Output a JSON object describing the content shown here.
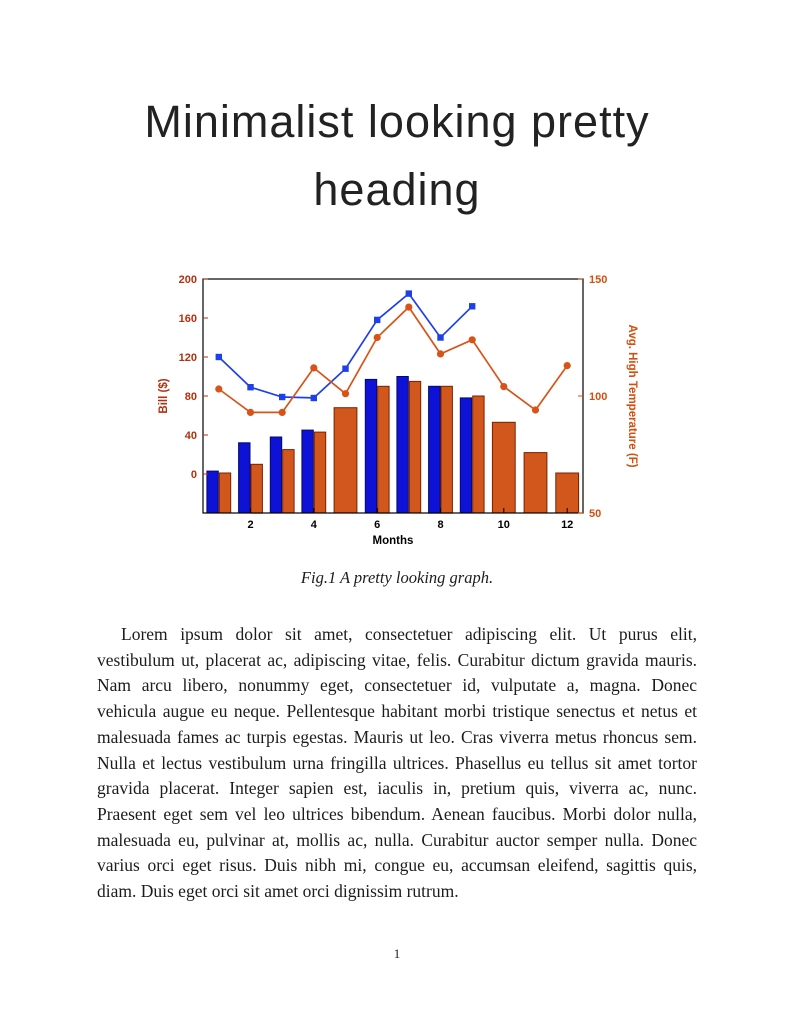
{
  "page": {
    "heading_line1": "Minimalist looking pretty",
    "heading_line2": "heading",
    "figure_caption": "Fig.1 A pretty looking graph.",
    "body_paragraph": "Lorem ipsum dolor sit amet, consectetuer adipiscing elit. Ut purus elit, vestibulum ut, placerat ac, adipiscing vitae, felis. Curabitur dictum gravida mauris. Nam arcu libero, nonummy eget, consectetuer id, vulputate a, magna. Donec vehicula augue eu neque. Pellentesque habitant morbi tristique senectus et netus et malesuada fames ac turpis egestas. Mauris ut leo. Cras viverra metus rhoncus sem. Nulla et lectus vestibulum urna fringilla ultrices. Phasellus eu tellus sit amet tortor gravida placerat. Integer sapien est, iaculis in, pretium quis, viverra ac, nunc. Praesent eget sem vel leo ultrices bibendum. Aenean faucibus. Morbi dolor nulla, malesuada eu, pulvinar at, mollis ac, nulla. Curabitur auctor semper nulla. Donec varius orci eget risus. Duis nibh mi, congue eu, accumsan eleifend, sagittis quis, diam. Duis eget orci sit amet orci dignissim rutrum.",
    "page_number": "1"
  },
  "chart_data": {
    "type": "bar",
    "subtype": "combo-bar-line-dual-axis",
    "x": [
      1,
      2,
      3,
      4,
      5,
      6,
      7,
      8,
      9,
      10,
      11,
      12
    ],
    "x_ticks": [
      2,
      4,
      6,
      8,
      10,
      12
    ],
    "x_min": 0.5,
    "x_max": 12.5,
    "xlabel": "Months",
    "grid": false,
    "legend": "none",
    "left_axis": {
      "label": "Bill ($)",
      "ticks": [
        0,
        40,
        80,
        120,
        160,
        200
      ],
      "min": -40,
      "max": 200,
      "color": "#b5300f"
    },
    "right_axis": {
      "label": "Avg. High Temperature (F)",
      "ticks": [
        50,
        100,
        150
      ],
      "min": 50,
      "max": 150,
      "color": "#d2500f"
    },
    "series": [
      {
        "name": "bill-bars-blue",
        "type": "bar",
        "axis": "left",
        "color": "#0d12d6",
        "edge": "#060a66",
        "values": [
          3,
          32,
          38,
          45,
          null,
          97,
          100,
          90,
          78,
          null,
          null,
          null
        ]
      },
      {
        "name": "temperature-bars-orange",
        "type": "bar",
        "axis": "left",
        "color": "#d2571c",
        "edge": "#7a2100",
        "values": [
          1,
          10,
          25,
          43,
          68,
          90,
          95,
          90,
          80,
          53,
          22,
          1
        ]
      },
      {
        "name": "bill-line-blue",
        "type": "line",
        "axis": "left",
        "color": "#1f3fe8",
        "marker": "square",
        "values": [
          120,
          89,
          79,
          78,
          108,
          158,
          185,
          140,
          172,
          null,
          null,
          null
        ]
      },
      {
        "name": "temperature-line-orange",
        "type": "line",
        "axis": "right",
        "color": "#d95319",
        "marker": "circle",
        "values": [
          103,
          93,
          93,
          112,
          101,
          125,
          138,
          118,
          124,
          104,
          94,
          113
        ]
      }
    ]
  }
}
